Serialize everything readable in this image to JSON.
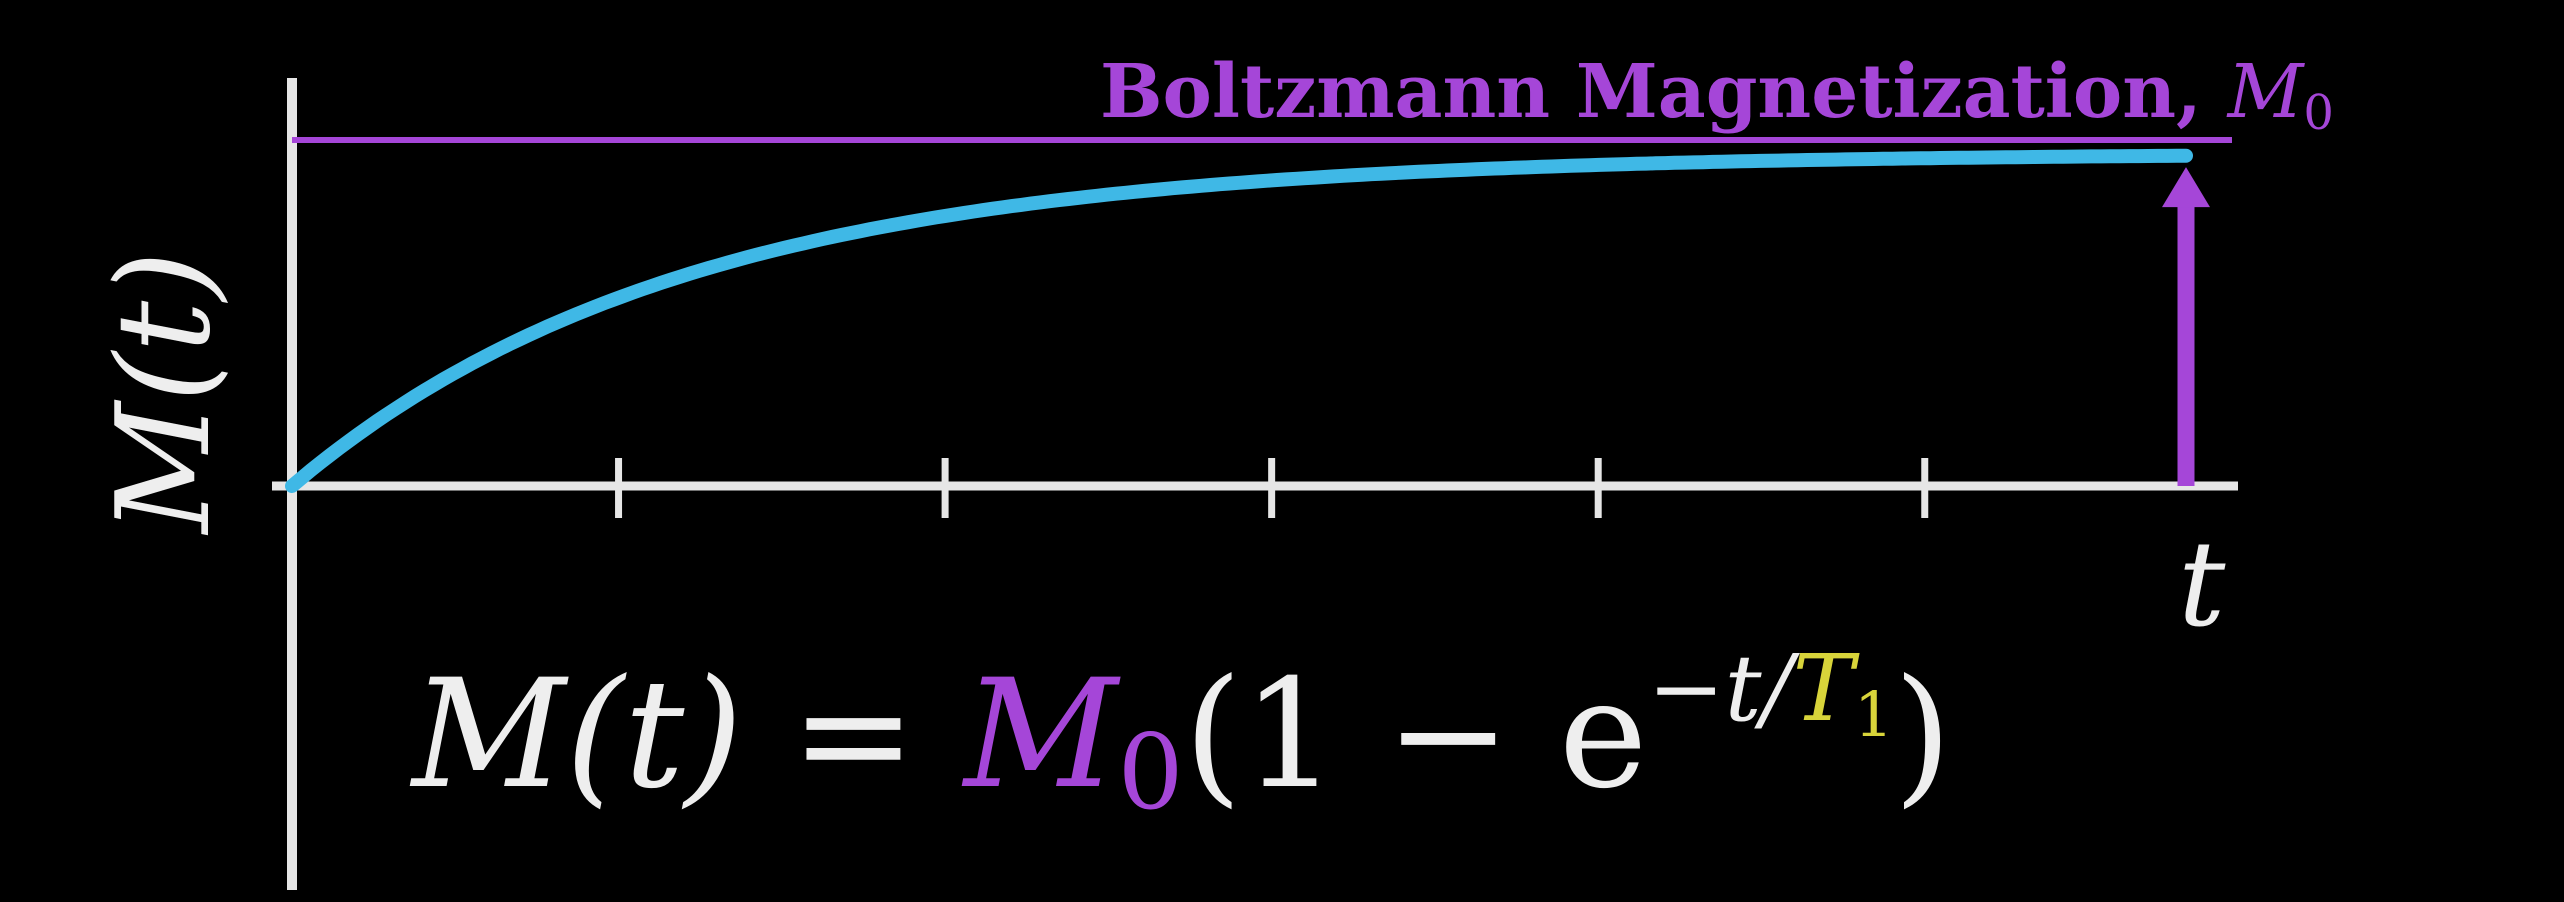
{
  "chart_data": {
    "type": "line",
    "title": "",
    "xlabel": "t",
    "ylabel": "M(t)",
    "x_ticks": [
      1,
      2,
      3,
      4,
      5
    ],
    "xlim": [
      0,
      5.8
    ],
    "ylim": [
      0,
      1
    ],
    "asymptote": {
      "value": 1,
      "label_text": "Boltzmann Magnetization, ",
      "label_symbol": "M",
      "label_subscript": "0"
    },
    "series": [
      {
        "function": "M0*(1-exp(-t/T1))",
        "M0": 1,
        "T1": 1.2,
        "x_start": 0,
        "x_end": 5.8
      }
    ],
    "vector_arrow": {
      "x": 5.8,
      "from": 0,
      "to": 1
    },
    "equation": {
      "lhs": "M(t) = ",
      "m0_symbol": "M",
      "m0_subscript": "0",
      "open": "(1 − e",
      "exp_minus": "−t/",
      "t1_symbol": "T",
      "t1_subscript": "1",
      "close": ")"
    }
  },
  "colors": {
    "background": "#000000",
    "axis": "#e6e6e6",
    "curve": "#3fb8e6",
    "magnetization": "#a546d8",
    "t1": "#d8d43a",
    "text": "#eeeeee"
  }
}
